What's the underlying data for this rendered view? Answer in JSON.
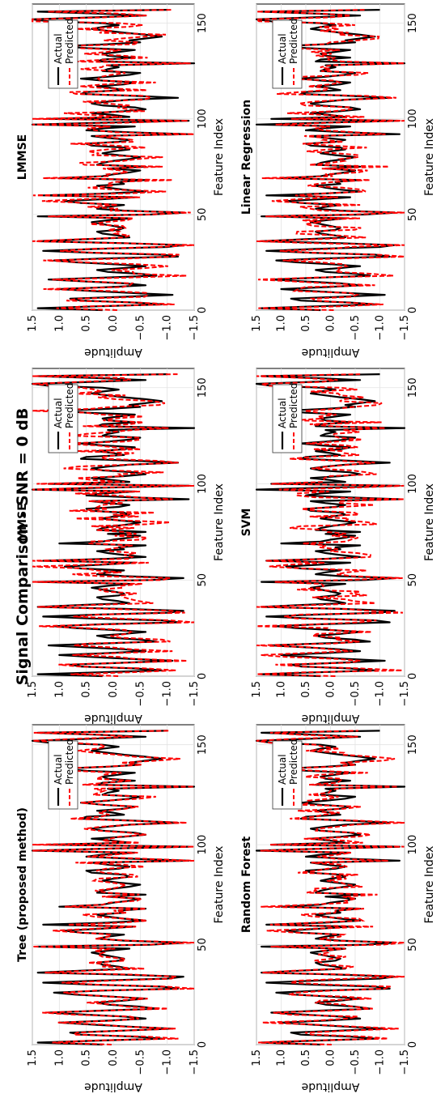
{
  "suptitle": "Signal Comparison - SNR = 0 dB",
  "chart_data": {
    "type": "line",
    "title": "Signal Comparison - SNR = 0 dB",
    "xlabel": "Feature Index",
    "ylabel": "Amplitude",
    "xlim": [
      0,
      160
    ],
    "ylim": [
      -1.5,
      1.5
    ],
    "xticks": [
      0,
      50,
      100,
      150
    ],
    "yticks": [
      1.5,
      1.0,
      0.5,
      0.0,
      -0.5,
      -1.0,
      -1.5
    ],
    "xtick_labels": [
      "0",
      "50",
      "100",
      "150"
    ],
    "ytick_labels": [
      "1.5",
      "1.0",
      "0.5",
      "0.0",
      "−0.5",
      "−1.0",
      "−1.5"
    ],
    "grid": true,
    "legend": [
      "Actual",
      "Predicted"
    ],
    "legend_location": "upper right",
    "colors": {
      "actual": "#000000",
      "predicted": "#ff0000"
    },
    "panels": [
      {
        "title": "Tree (proposed method)",
        "noise": 0.1,
        "seed": 11
      },
      {
        "title": "Random Forest",
        "noise": 0.14,
        "seed": 23
      },
      {
        "title": "MMSE",
        "noise": 0.2,
        "seed": 37
      },
      {
        "title": "SVM",
        "noise": 0.22,
        "seed": 41
      },
      {
        "title": "LMMSE",
        "noise": 0.17,
        "seed": 53
      },
      {
        "title": "Linear Regression",
        "noise": 0.18,
        "seed": 67
      }
    ],
    "series": [
      {
        "name": "Actual",
        "x_start": 0,
        "x_step": 1,
        "values": [
          0.2,
          1.4,
          0.3,
          -0.9,
          -0.4,
          0.6,
          0.8,
          -0.2,
          -1.1,
          -0.3,
          0.4,
          1.0,
          0.1,
          -0.6,
          -0.2,
          0.5,
          1.2,
          0.2,
          -0.8,
          -0.5,
          0.1,
          0.3,
          -0.2,
          -0.6,
          0.0,
          0.7,
          1.1,
          0.2,
          -1.2,
          -0.9,
          0.4,
          1.3,
          0.3,
          -1.0,
          -1.3,
          -0.2,
          1.4,
          0.6,
          -0.3,
          -0.1,
          0.2,
          0.3,
          -0.1,
          -0.2,
          0.0,
          0.2,
          0.4,
          0.1,
          -0.3,
          1.4,
          -0.7,
          -1.3,
          -0.2,
          0.3,
          0.1,
          -0.2,
          0.6,
          0.9,
          0.2,
          -0.4,
          1.3,
          0.1,
          -0.6,
          -0.2,
          0.1,
          0.3,
          -0.2,
          -0.1,
          -0.6,
          1.0,
          0.2,
          0.0,
          -0.3,
          -0.5,
          0.1,
          -0.6,
          0.3,
          0.2,
          0.0,
          -0.3,
          -0.5,
          -0.1,
          0.2,
          0.0,
          -0.3,
          -0.2,
          0.4,
          0.5,
          -0.1,
          -0.3,
          0.1,
          0.4,
          -1.4,
          -0.3,
          0.5,
          0.2,
          -0.4,
          1.5,
          0.2,
          -1.4,
          1.2,
          -0.3,
          0.0,
          0.4,
          -0.2,
          -0.6,
          -0.4,
          0.2,
          0.4,
          0.1,
          -0.3,
          -1.2,
          -0.4,
          0.6,
          0.5,
          -0.2,
          0.0,
          0.3,
          -0.2,
          -0.4,
          0.2,
          0.6,
          0.1,
          -0.3,
          -0.5,
          0.2,
          0.1,
          -0.1,
          0.1,
          -1.5,
          0.3,
          0.2,
          -0.4,
          0.1,
          0.2,
          -0.1,
          -0.4,
          0.5,
          1.0,
          0.1,
          -0.5,
          -0.3,
          -0.6,
          -0.9,
          -0.6,
          -0.2,
          0.1,
          0.4,
          0.2,
          -0.1,
          0.2,
          1.2,
          1.5,
          0.4,
          -0.6,
          0.3,
          1.4,
          -1.0
        ]
      },
      {
        "name": "Predicted",
        "derived_from": "Actual"
      }
    ]
  }
}
